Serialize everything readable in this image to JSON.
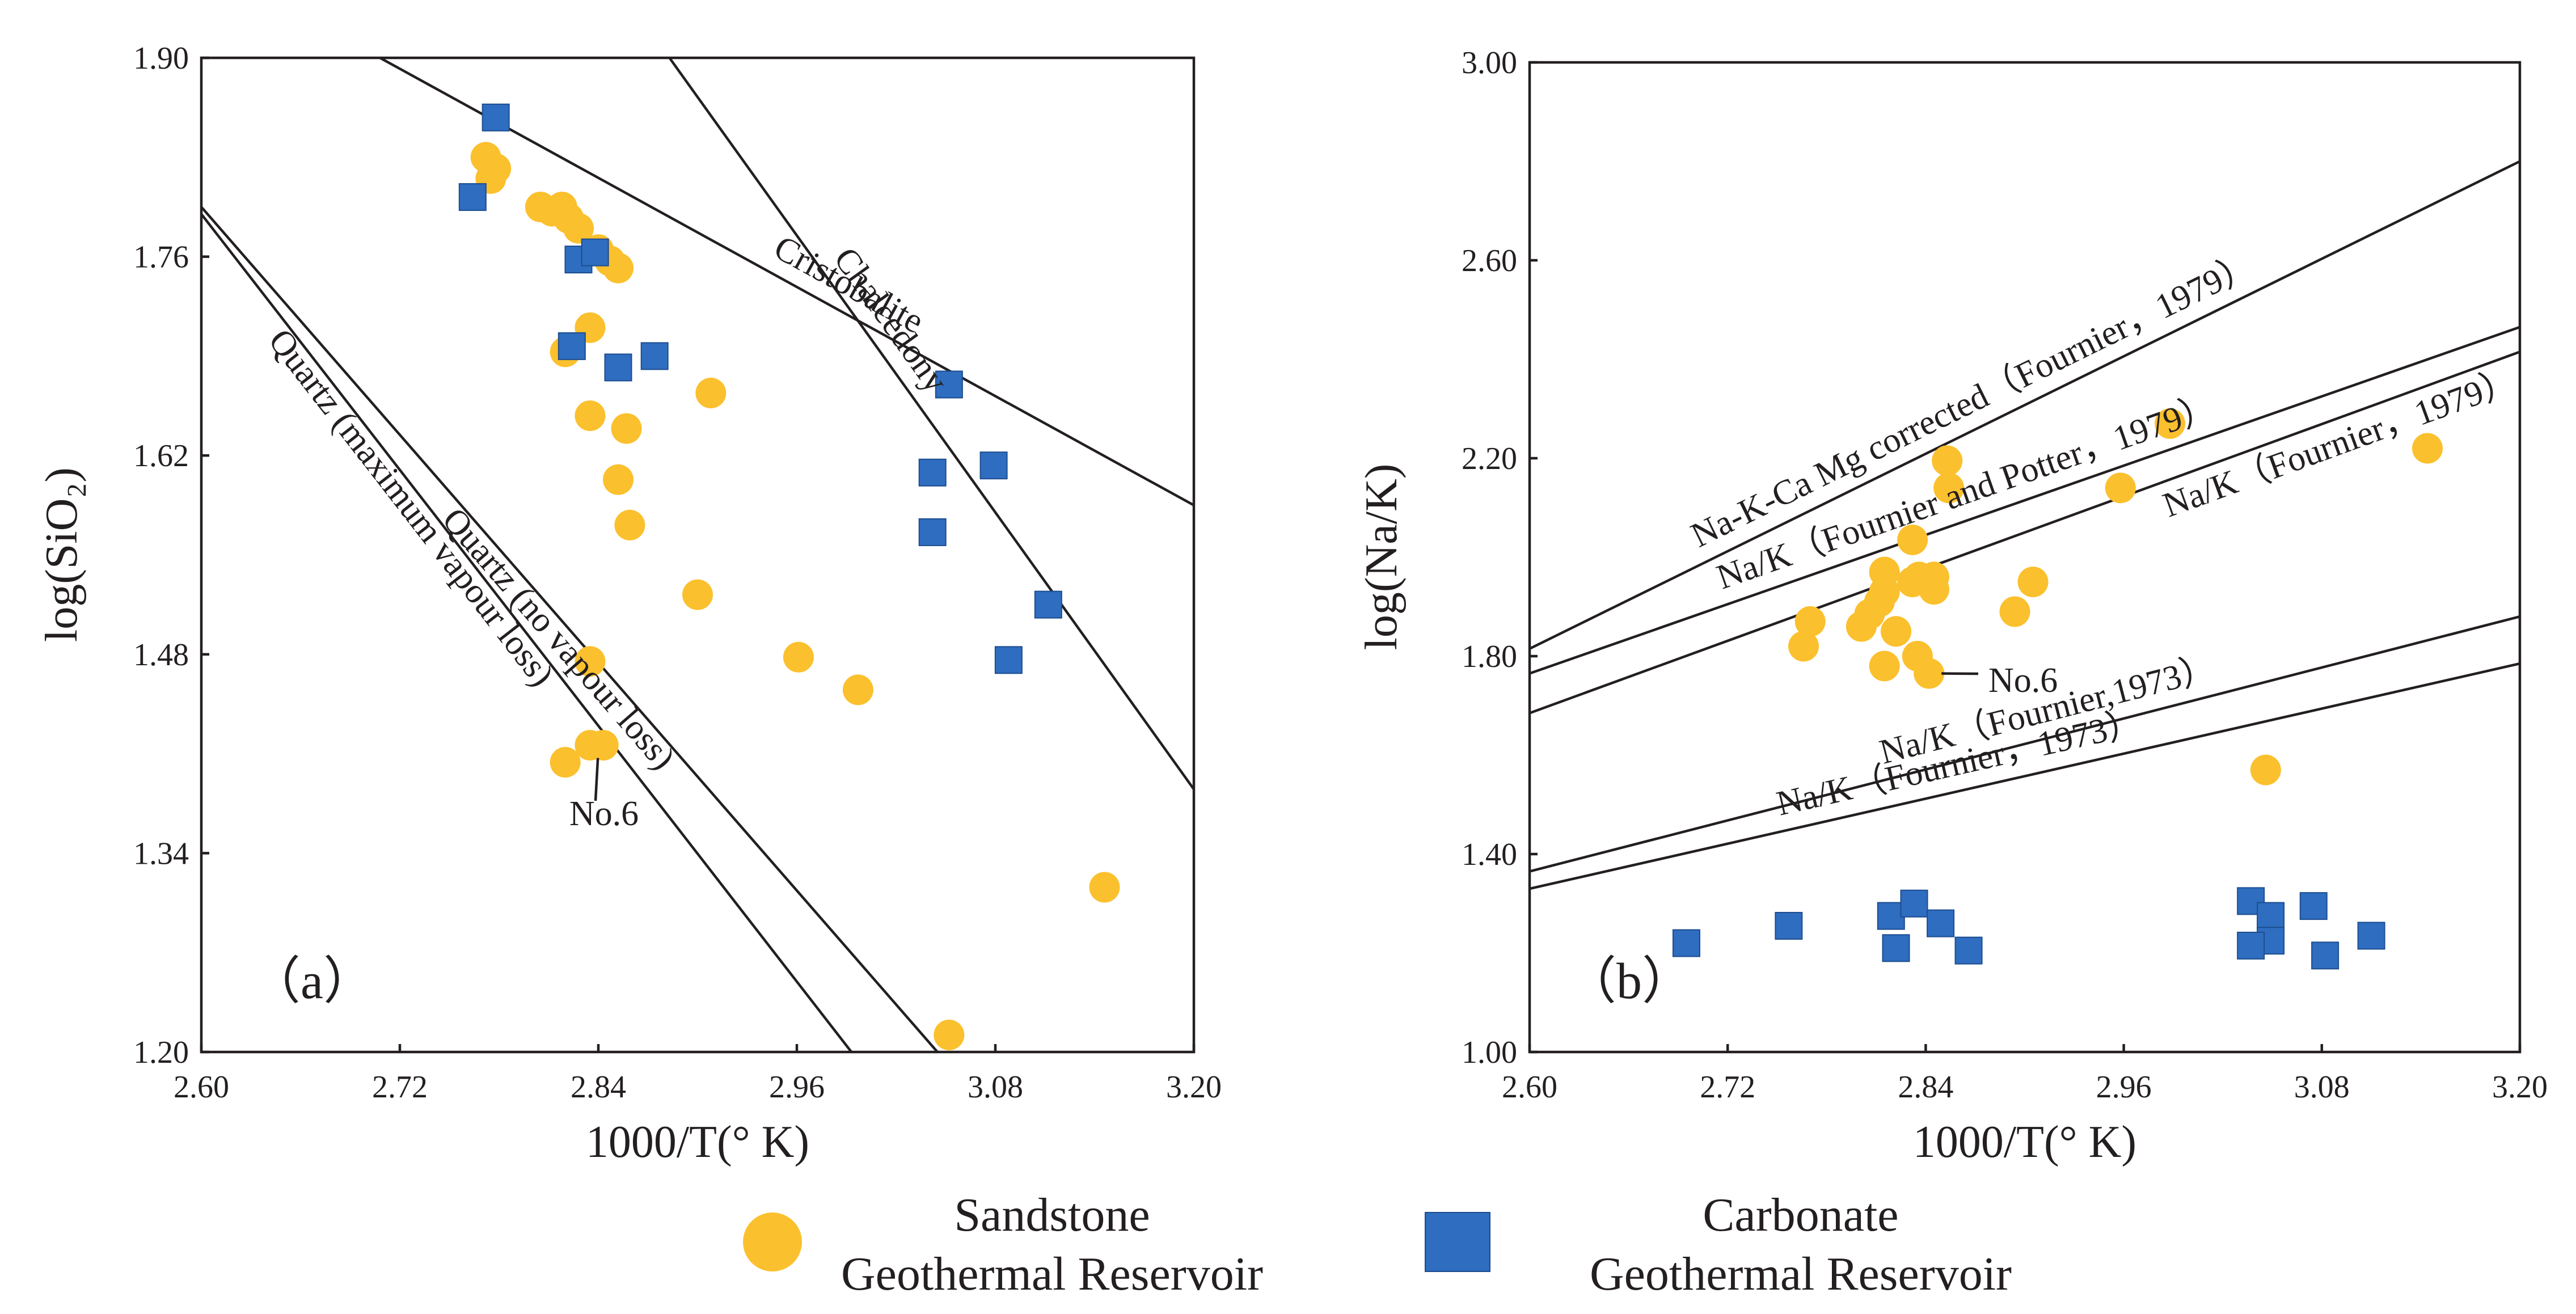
{
  "colors": {
    "sandstone": "#fbc02d",
    "carbonate": "#2e6dbf",
    "axis": "#231f20"
  },
  "legend": {
    "sandstone": {
      "line1": "Sandstone",
      "line2": "Geothermal Reservoir"
    },
    "carbonate": {
      "line1": "Carbonate",
      "line2": "Geothermal Reservoir"
    }
  },
  "chart_data": [
    {
      "type": "scatter",
      "panel_label": "（a）",
      "xlabel": "1000/T(°  K)",
      "ylabel": "log(SiO₂)",
      "xlim": [
        2.6,
        3.2
      ],
      "ylim": [
        1.2,
        1.9
      ],
      "xticks": [
        "2.60",
        "2.72",
        "2.84",
        "2.96",
        "3.08",
        "3.20"
      ],
      "yticks": [
        "1.20",
        "1.34",
        "1.48",
        "1.62",
        "1.76",
        "1.90"
      ],
      "lines": [
        {
          "name": "Cristobalite",
          "from": [
            2.708,
            1.9
          ],
          "to": [
            3.2,
            1.585
          ]
        },
        {
          "name": "Chalcedony",
          "from": [
            2.883,
            1.9
          ],
          "to": [
            3.2,
            1.385
          ]
        },
        {
          "name": "Quartz (no vapour loss)",
          "from": [
            2.6,
            1.795
          ],
          "to": [
            3.045,
            1.2
          ]
        },
        {
          "name": "Quartz (maximum vapour loss)",
          "from": [
            2.6,
            1.79
          ],
          "to": [
            2.993,
            1.2
          ]
        }
      ],
      "annotation": {
        "text": "No.6",
        "point": [
          2.838,
          1.415
        ]
      },
      "series": [
        {
          "name": "Sandstone Geothermal Reservoir",
          "marker": "circle",
          "points": [
            [
              2.772,
              1.83
            ],
            [
              2.775,
              1.815
            ],
            [
              2.778,
              1.822
            ],
            [
              2.805,
              1.795
            ],
            [
              2.812,
              1.792
            ],
            [
              2.818,
              1.795
            ],
            [
              2.822,
              1.787
            ],
            [
              2.828,
              1.78
            ],
            [
              2.84,
              1.765
            ],
            [
              2.847,
              1.757
            ],
            [
              2.852,
              1.752
            ],
            [
              2.835,
              1.71
            ],
            [
              2.82,
              1.693
            ],
            [
              2.908,
              1.664
            ],
            [
              2.835,
              1.648
            ],
            [
              2.857,
              1.639
            ],
            [
              2.852,
              1.603
            ],
            [
              2.859,
              1.571
            ],
            [
              2.9,
              1.522
            ],
            [
              2.961,
              1.478
            ],
            [
              2.997,
              1.455
            ],
            [
              2.835,
              1.475
            ],
            [
              2.835,
              1.416
            ],
            [
              2.843,
              1.416
            ],
            [
              2.82,
              1.404
            ],
            [
              3.146,
              1.316
            ],
            [
              3.052,
              1.212
            ]
          ]
        },
        {
          "name": "Carbonate Geothermal Reservoir",
          "marker": "square",
          "points": [
            [
              2.778,
              1.858
            ],
            [
              2.764,
              1.802
            ],
            [
              2.828,
              1.758
            ],
            [
              2.838,
              1.763
            ],
            [
              2.824,
              1.697
            ],
            [
              2.852,
              1.682
            ],
            [
              2.874,
              1.69
            ],
            [
              3.052,
              1.67
            ],
            [
              3.042,
              1.608
            ],
            [
              3.079,
              1.613
            ],
            [
              3.042,
              1.566
            ],
            [
              3.112,
              1.515
            ],
            [
              3.088,
              1.476
            ]
          ]
        }
      ]
    },
    {
      "type": "scatter",
      "panel_label": "（b）",
      "xlabel": "1000/T(°  K)",
      "ylabel": "log(Na/K)",
      "xlim": [
        2.6,
        3.2
      ],
      "ylim": [
        1.0,
        3.0
      ],
      "xticks": [
        "2.60",
        "2.72",
        "2.84",
        "2.96",
        "3.08",
        "3.20"
      ],
      "yticks": [
        "1.00",
        "1.40",
        "1.80",
        "2.20",
        "2.60",
        "3.00"
      ],
      "lines": [
        {
          "name": "Na-K-Ca Mg corrected（Fournier，1979）",
          "from": [
            2.6,
            1.815
          ],
          "to": [
            3.2,
            2.8
          ]
        },
        {
          "name": "Na/K（Fournier and Potter，1979）",
          "from": [
            2.6,
            1.765
          ],
          "to": [
            3.2,
            2.465
          ]
        },
        {
          "name": "Na/K（Fournier，1979）",
          "from": [
            2.6,
            1.685
          ],
          "to": [
            3.2,
            2.415
          ]
        },
        {
          "name": "Na/K（Fournier,1973）",
          "from": [
            2.6,
            1.365
          ],
          "to": [
            3.2,
            1.88
          ]
        },
        {
          "name": "Na/K（Fournier，1973）",
          "from": [
            2.6,
            1.33
          ],
          "to": [
            3.2,
            1.785
          ]
        }
      ],
      "annotation": {
        "text": "No.6",
        "point": [
          2.842,
          1.765
        ]
      },
      "series": [
        {
          "name": "Sandstone Geothermal Reservoir",
          "marker": "circle",
          "points": [
            [
              2.853,
              2.195
            ],
            [
              2.854,
              2.14
            ],
            [
              2.832,
              2.035
            ],
            [
              2.815,
              1.97
            ],
            [
              2.832,
              1.95
            ],
            [
              2.836,
              1.96
            ],
            [
              2.845,
              1.96
            ],
            [
              2.845,
              1.935
            ],
            [
              2.815,
              1.93
            ],
            [
              2.812,
              1.91
            ],
            [
              2.806,
              1.885
            ],
            [
              2.801,
              1.86
            ],
            [
              2.822,
              1.85
            ],
            [
              2.77,
              1.87
            ],
            [
              2.766,
              1.82
            ],
            [
              2.815,
              1.78
            ],
            [
              2.835,
              1.8
            ],
            [
              2.842,
              1.765
            ],
            [
              2.905,
              1.95
            ],
            [
              2.894,
              1.89
            ],
            [
              2.958,
              2.14
            ],
            [
              2.988,
              2.27
            ],
            [
              3.144,
              2.22
            ],
            [
              3.046,
              1.57
            ]
          ]
        },
        {
          "name": "Carbonate Geothermal Reservoir",
          "marker": "square",
          "points": [
            [
              2.695,
              1.22
            ],
            [
              2.757,
              1.255
            ],
            [
              2.819,
              1.275
            ],
            [
              2.833,
              1.3
            ],
            [
              2.822,
              1.21
            ],
            [
              2.849,
              1.26
            ],
            [
              2.866,
              1.205
            ],
            [
              3.037,
              1.305
            ],
            [
              3.049,
              1.275
            ],
            [
              3.049,
              1.225
            ],
            [
              3.037,
              1.215
            ],
            [
              3.075,
              1.295
            ],
            [
              3.082,
              1.195
            ],
            [
              3.11,
              1.235
            ]
          ]
        }
      ]
    }
  ]
}
